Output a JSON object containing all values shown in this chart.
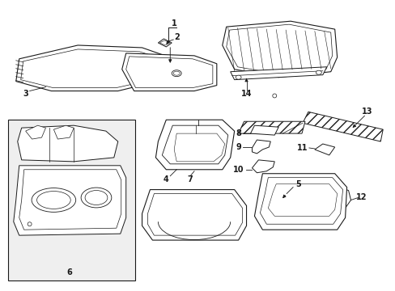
{
  "bg_color": "#ffffff",
  "line_color": "#1a1a1a",
  "box_fill": "#efefef",
  "figsize": [
    4.89,
    3.6
  ],
  "dpi": 100
}
